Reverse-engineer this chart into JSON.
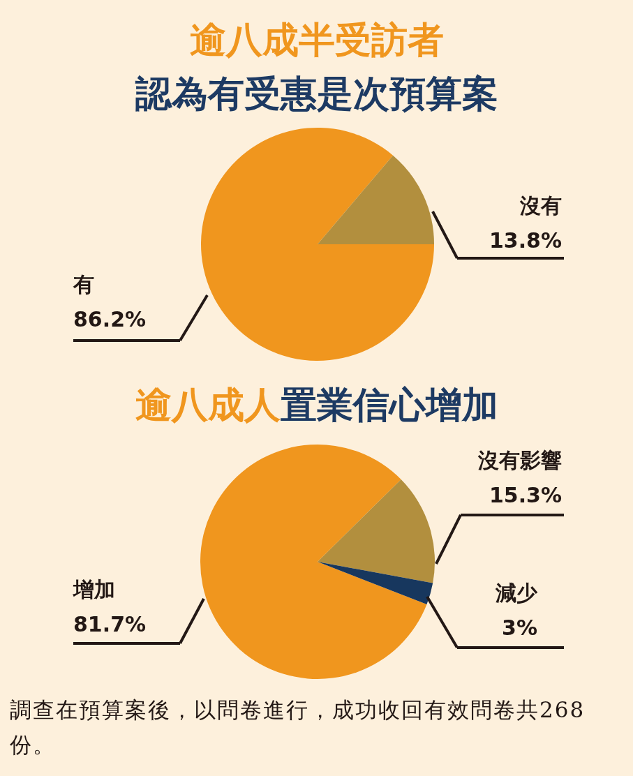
{
  "chart_data": [
    {
      "type": "pie",
      "title": "逾八成半受訪者",
      "subtitle": "認為有受惠是次預算案",
      "categories": [
        "有",
        "沒有"
      ],
      "values": [
        86.2,
        13.8
      ],
      "colors": [
        "#f0961e",
        "#b28f3e"
      ],
      "value_labels": [
        "86.2%",
        "13.8%"
      ]
    },
    {
      "type": "pie",
      "title": "逾八成人",
      "subtitle": "置業信心增加",
      "categories": [
        "增加",
        "沒有影響",
        "減少"
      ],
      "values": [
        81.7,
        15.3,
        3
      ],
      "colors": [
        "#f0961e",
        "#b28f3e",
        "#17375e"
      ],
      "value_labels": [
        "81.7%",
        "15.3%",
        "3%"
      ],
      "annotations": [
        "調查在預算案後，以問卷進行，成功收回有效問卷共268份。"
      ]
    }
  ]
}
